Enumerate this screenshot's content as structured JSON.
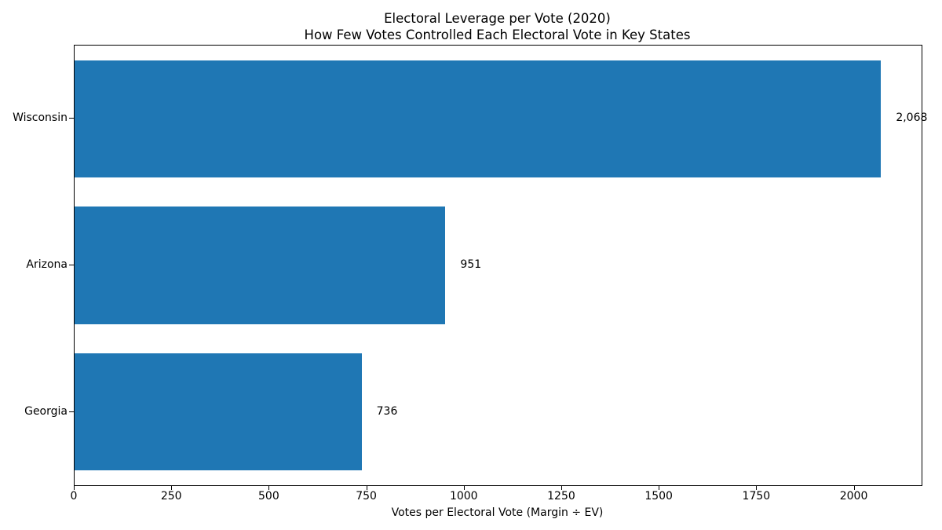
{
  "chart_data": {
    "type": "bar",
    "orientation": "horizontal",
    "title": "Electoral Leverage per Vote (2020)",
    "subtitle": "How Few Votes Controlled Each Electoral Vote in Key States",
    "xlabel": "Votes per Electoral Vote (Margin ÷ EV)",
    "categories": [
      "Wisconsin",
      "Arizona",
      "Georgia"
    ],
    "values": [
      2068,
      951,
      736
    ],
    "value_labels": [
      "2,068",
      "951",
      "736"
    ],
    "xticks": [
      0,
      250,
      500,
      750,
      1000,
      1250,
      1500,
      1750,
      2000
    ],
    "xlim": [
      0,
      2172
    ],
    "bar_color": "#1f77b4",
    "grid": false,
    "legend_position": "none"
  }
}
